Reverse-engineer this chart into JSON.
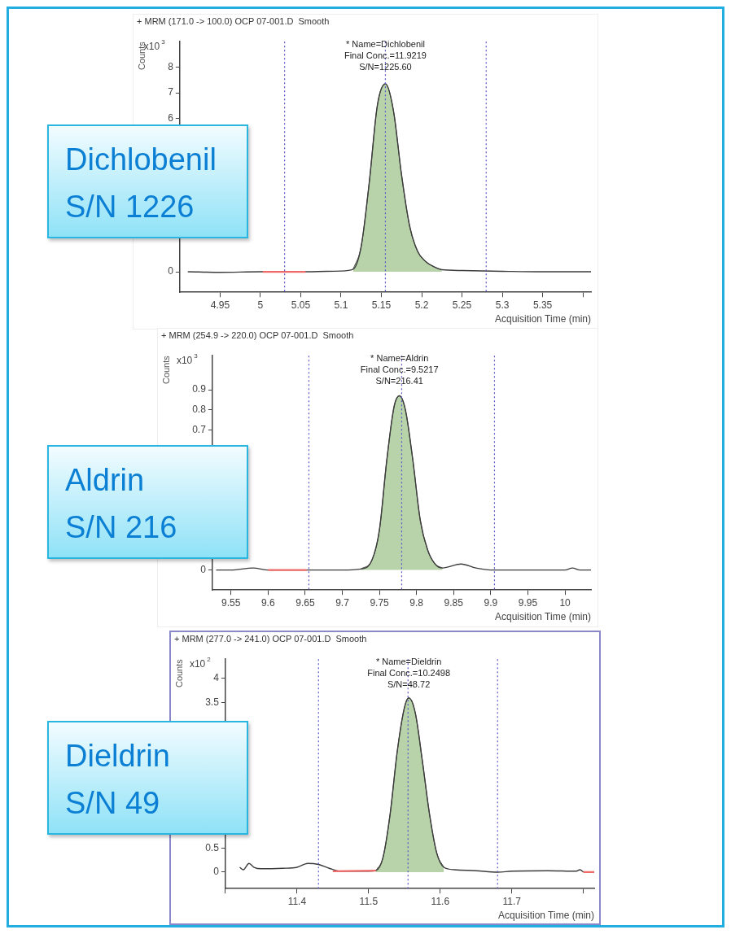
{
  "chart_data": [
    {
      "type": "line",
      "title": "+ MRM (171.0 -> 100.0) OCP 07-001.D  Smooth",
      "xlabel": "Acquisition Time (min)",
      "ylabel": "Counts",
      "annotations": [
        "* Name=Dichlobenil",
        "Final Conc.=11.9219",
        "S/N=1225.60",
        "x10$^{3}$",
        "Dichlobenil",
        "S/N 1226"
      ],
      "xlim": [
        4.9,
        5.41
      ],
      "xticks": [
        4.95,
        5,
        5.05,
        5.1,
        5.15,
        5.2,
        5.25,
        5.3,
        5.35,
        {
          "value": 5.4,
          "label": null
        }
      ],
      "ylim": [
        -0.8,
        9
      ],
      "yticks": [
        0,
        6,
        7,
        8
      ],
      "series": [
        {
          "type": "line",
          "color": "#3c3c3c",
          "x": [
            4.91,
            4.95,
            5.0,
            5.05,
            5.1,
            5.115,
            5.125,
            5.135,
            5.145,
            5.155,
            5.165,
            5.175,
            5.185,
            5.195,
            5.205,
            5.215,
            5.225,
            5.25,
            5.3,
            5.35,
            5.41
          ],
          "values": [
            0,
            -0.02,
            0,
            0,
            0.03,
            0.1,
            1.0,
            3.5,
            6.5,
            7.35,
            6.3,
            3.8,
            1.8,
            0.8,
            0.4,
            0.2,
            0.08,
            0.05,
            0.02,
            0,
            0
          ]
        },
        {
          "type": "area",
          "color": "#b8d3aa",
          "x": [
            5.115,
            5.125,
            5.135,
            5.145,
            5.155,
            5.165,
            5.175,
            5.185,
            5.195,
            5.205,
            5.215,
            5.225
          ],
          "values": [
            0.1,
            1.0,
            3.5,
            6.5,
            7.35,
            6.3,
            3.8,
            1.8,
            0.8,
            0.4,
            0.2,
            0.08
          ]
        },
        {
          "type": "line",
          "color": "#f06a6a",
          "x": [
            5.003,
            5.056
          ],
          "values": [
            0,
            0
          ]
        }
      ],
      "ref_lines": [
        {
          "axis": "x",
          "value": 5.03,
          "line_style": "dotted",
          "color": "#5a55c8"
        },
        {
          "axis": "x",
          "value": 5.155,
          "line_style": "dotted",
          "color": "#5a55c8"
        },
        {
          "axis": "x",
          "value": 5.28,
          "line_style": "dotted",
          "color": "#5a55c8"
        }
      ]
    },
    {
      "type": "line",
      "title": "+ MRM (254.9 -> 220.0) OCP 07-001.D  Smooth",
      "xlabel": "Acquisition Time (min)",
      "ylabel": "Counts",
      "annotations": [
        "* Name=Aldrin",
        "Final Conc.=9.5217",
        "S/N=216.41",
        "x10$^{3}$",
        "Aldrin",
        "S/N 216"
      ],
      "xlim": [
        9.525,
        10.035
      ],
      "xticks": [
        9.55,
        9.6,
        9.65,
        9.7,
        9.75,
        9.8,
        9.85,
        9.9,
        9.95,
        10
      ],
      "ylim": [
        -0.1,
        1.07
      ],
      "yticks": [
        0,
        0.7,
        0.8,
        0.9
      ],
      "series": [
        {
          "type": "line",
          "color": "#3c3c3c",
          "x": [
            9.53,
            9.55,
            9.58,
            9.6,
            9.65,
            9.7,
            9.725,
            9.74,
            9.75,
            9.76,
            9.77,
            9.777,
            9.785,
            9.795,
            9.805,
            9.815,
            9.825,
            9.835,
            9.86,
            9.88,
            9.9,
            9.95,
            10.0,
            10.01,
            10.02,
            10.035
          ],
          "values": [
            0,
            0,
            0.01,
            0,
            0,
            0,
            0.005,
            0.05,
            0.2,
            0.55,
            0.82,
            0.87,
            0.8,
            0.55,
            0.25,
            0.1,
            0.03,
            0.01,
            0.03,
            0.01,
            0,
            0,
            0,
            0.01,
            0,
            0
          ]
        },
        {
          "type": "area",
          "color": "#b8d3aa",
          "x": [
            9.725,
            9.74,
            9.75,
            9.76,
            9.77,
            9.777,
            9.785,
            9.795,
            9.805,
            9.815,
            9.825,
            9.835
          ],
          "values": [
            0.005,
            0.05,
            0.2,
            0.55,
            0.82,
            0.87,
            0.8,
            0.55,
            0.25,
            0.1,
            0.03,
            0.01
          ]
        },
        {
          "type": "line",
          "color": "#f06a6a",
          "x": [
            9.6,
            9.652
          ],
          "values": [
            0,
            0
          ]
        }
      ],
      "ref_lines": [
        {
          "axis": "x",
          "value": 9.655,
          "line_style": "dotted",
          "color": "#5a55c8"
        },
        {
          "axis": "x",
          "value": 9.78,
          "line_style": "dotted",
          "color": "#5a55c8"
        },
        {
          "axis": "x",
          "value": 9.905,
          "line_style": "dotted",
          "color": "#5a55c8"
        }
      ]
    },
    {
      "type": "line",
      "title": "+ MRM (277.0 -> 241.0) OCP 07-001.D  Smooth",
      "xlabel": "Acquisition Time (min)",
      "ylabel": "Counts",
      "annotations": [
        "* Name=Dieldrin",
        "Final Conc.=10.2498",
        "S/N=48.72",
        "x10$^{2}$",
        "Dieldrin",
        "S/N 49"
      ],
      "xlim": [
        11.3,
        11.815
      ],
      "xticks": [
        {
          "value": 11.3,
          "label": null
        },
        11.4,
        11.5,
        11.6,
        11.7,
        {
          "value": 11.8,
          "label": null
        }
      ],
      "ylim": [
        -0.34,
        4.4
      ],
      "yticks": [
        0,
        0.5,
        3.5,
        4
      ],
      "series": [
        {
          "type": "line",
          "color": "#3c3c3c",
          "x": [
            11.32,
            11.325,
            11.333,
            11.34,
            11.35,
            11.38,
            11.4,
            11.415,
            11.43,
            11.445,
            11.46,
            11.5,
            11.51,
            11.52,
            11.53,
            11.54,
            11.55,
            11.556,
            11.565,
            11.575,
            11.585,
            11.595,
            11.605,
            11.62,
            11.65,
            11.68,
            11.7,
            11.75,
            11.79,
            11.795,
            11.8
          ],
          "values": [
            0.1,
            0.05,
            0.18,
            0.1,
            0.07,
            0.08,
            0.1,
            0.18,
            0.16,
            0.08,
            0.02,
            0.02,
            0.03,
            0.3,
            1.2,
            2.5,
            3.4,
            3.6,
            3.3,
            2.3,
            1.2,
            0.4,
            0.1,
            0.05,
            0.03,
            0,
            0.02,
            0.03,
            0.02,
            0.05,
            0
          ]
        },
        {
          "type": "area",
          "color": "#b8d3aa",
          "x": [
            11.51,
            11.52,
            11.53,
            11.54,
            11.55,
            11.556,
            11.565,
            11.575,
            11.585,
            11.595,
            11.605
          ],
          "values": [
            0.03,
            0.3,
            1.2,
            2.5,
            3.4,
            3.6,
            3.3,
            2.3,
            1.2,
            0.4,
            0.1
          ]
        },
        {
          "type": "line",
          "color": "#f06a6a",
          "x": [
            11.45,
            11.51
          ],
          "values": [
            0.02,
            0.03
          ]
        },
        {
          "type": "line",
          "color": "#f06a6a",
          "x": [
            11.8,
            11.815
          ],
          "values": [
            0,
            0
          ]
        }
      ],
      "ref_lines": [
        {
          "axis": "x",
          "value": 11.43,
          "line_style": "dotted",
          "color": "#5a55c8"
        },
        {
          "axis": "x",
          "value": 11.555,
          "line_style": "dotted",
          "color": "#5a55c8"
        },
        {
          "axis": "x",
          "value": 11.68,
          "line_style": "dotted",
          "color": "#5a55c8"
        }
      ]
    }
  ]
}
